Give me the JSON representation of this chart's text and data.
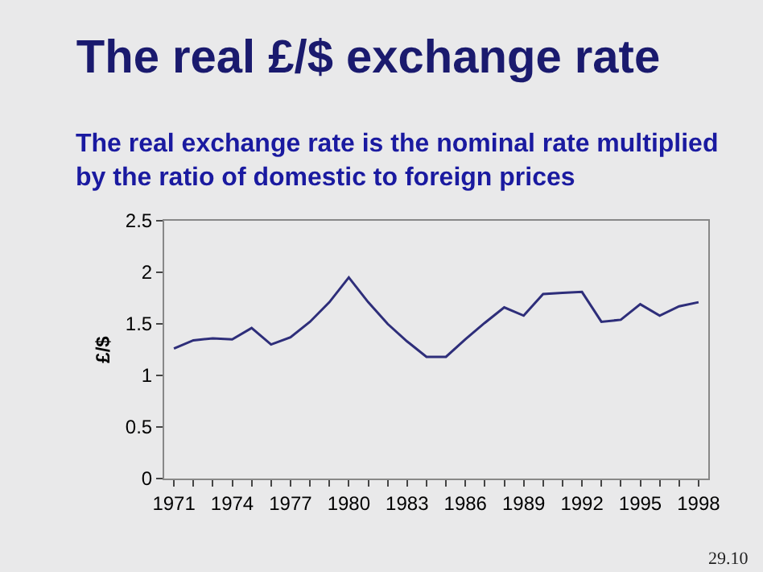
{
  "chart_data": {
    "type": "line",
    "title": "The real £/$ exchange rate",
    "subtitle": "The real exchange rate is the nominal rate multiplied by the ratio of domestic to foreign prices",
    "ylabel": "£/$",
    "x": [
      1971,
      1972,
      1973,
      1974,
      1975,
      1976,
      1977,
      1978,
      1979,
      1980,
      1981,
      1982,
      1983,
      1984,
      1985,
      1986,
      1987,
      1988,
      1989,
      1990,
      1991,
      1992,
      1993,
      1994,
      1995,
      1996,
      1997,
      1998
    ],
    "series": [
      {
        "color": "#2e2e7a",
        "values": [
          1.26,
          1.34,
          1.36,
          1.35,
          1.46,
          1.3,
          1.37,
          1.52,
          1.71,
          1.95,
          1.71,
          1.5,
          1.33,
          1.18,
          1.18,
          1.35,
          1.51,
          1.66,
          1.58,
          1.79,
          1.8,
          1.81,
          1.52,
          1.54,
          1.69,
          1.58,
          1.67,
          1.71
        ]
      }
    ],
    "xlim": [
      1970.5,
      1998.5
    ],
    "xticks": [
      1971,
      1974,
      1977,
      1980,
      1983,
      1986,
      1989,
      1992,
      1995,
      1998
    ],
    "ylim": [
      0,
      2.5
    ],
    "yticks": [
      0,
      0.5,
      1,
      1.5,
      2,
      2.5
    ],
    "grid": false,
    "legend": false,
    "marker": "none",
    "line_style": "solid",
    "annotations": [
      "29.10"
    ]
  }
}
